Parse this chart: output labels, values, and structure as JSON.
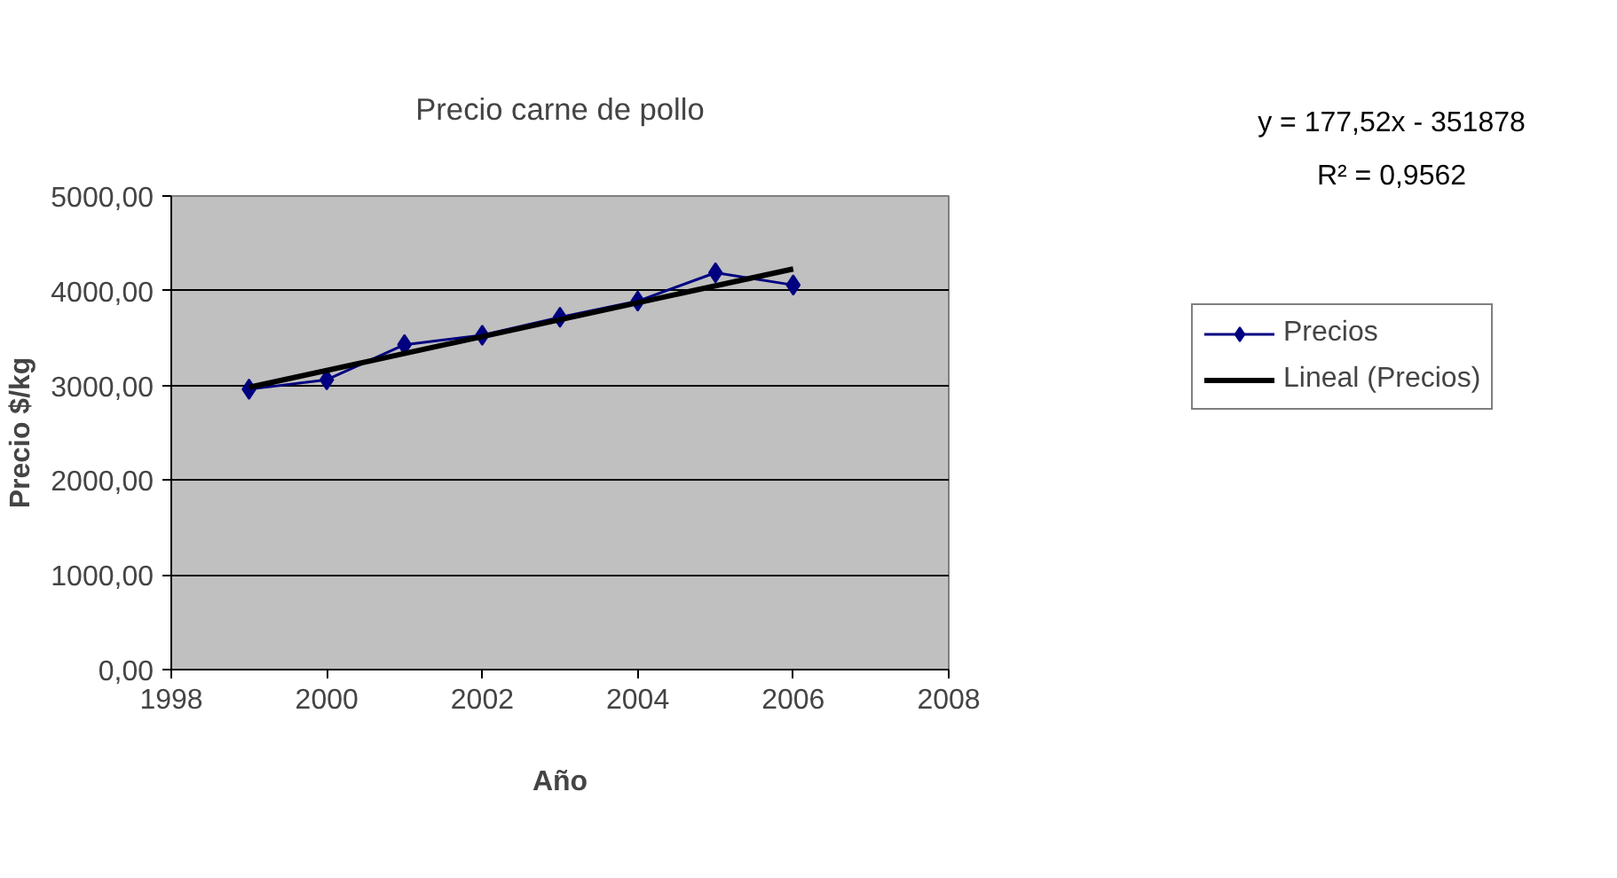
{
  "chart_data": {
    "type": "line",
    "title": "Precio carne de pollo",
    "xlabel": "Año",
    "ylabel": "Precio $/kg",
    "xlim": [
      1998,
      2008
    ],
    "xticks": [
      1998,
      2000,
      2002,
      2004,
      2006,
      2008
    ],
    "ylim": [
      0,
      5000
    ],
    "yticks": [
      {
        "value": 0,
        "label": "0,00"
      },
      {
        "value": 1000,
        "label": "1000,00"
      },
      {
        "value": 2000,
        "label": "2000,00"
      },
      {
        "value": 3000,
        "label": "3000,00"
      },
      {
        "value": 4000,
        "label": "4000,00"
      },
      {
        "value": 5000,
        "label": "5000,00"
      }
    ],
    "grid": "y",
    "legend": "right",
    "series": [
      {
        "name": "Precios",
        "color": "#000080",
        "marker": "diamond",
        "x": [
          1999,
          2000,
          2001,
          2002,
          2003,
          2004,
          2005,
          2006
        ],
        "values": [
          2960,
          3060,
          3430,
          3530,
          3720,
          3890,
          4190,
          4060
        ]
      },
      {
        "name": "Lineal (Precios)",
        "color": "#000000",
        "marker": "none",
        "x": [
          1999,
          2006
        ],
        "values": [
          2980,
          4230
        ]
      }
    ],
    "annotations": [
      "y = 177,52x - 351878",
      "R² = 0,9562"
    ]
  }
}
